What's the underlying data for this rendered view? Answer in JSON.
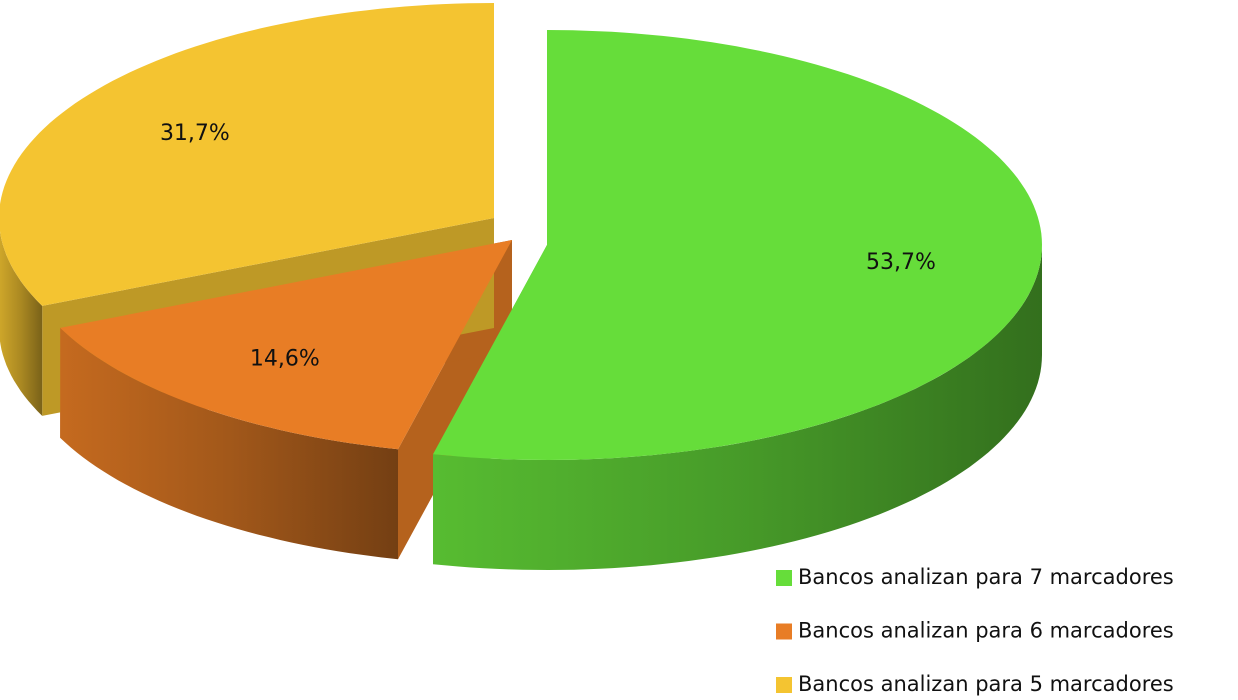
{
  "chart_data": {
    "type": "pie",
    "categories": [
      "Bancos analizan para 7 marcadores",
      "Bancos analizan para 6 marcadores",
      "Bancos analizan para 5 marcadores"
    ],
    "values": [
      53.7,
      14.6,
      31.7
    ],
    "value_labels": [
      "53,7%",
      "14,6%",
      "31,7%"
    ],
    "colors": [
      "#66dd3a",
      "#e87d25",
      "#f4c431"
    ]
  }
}
